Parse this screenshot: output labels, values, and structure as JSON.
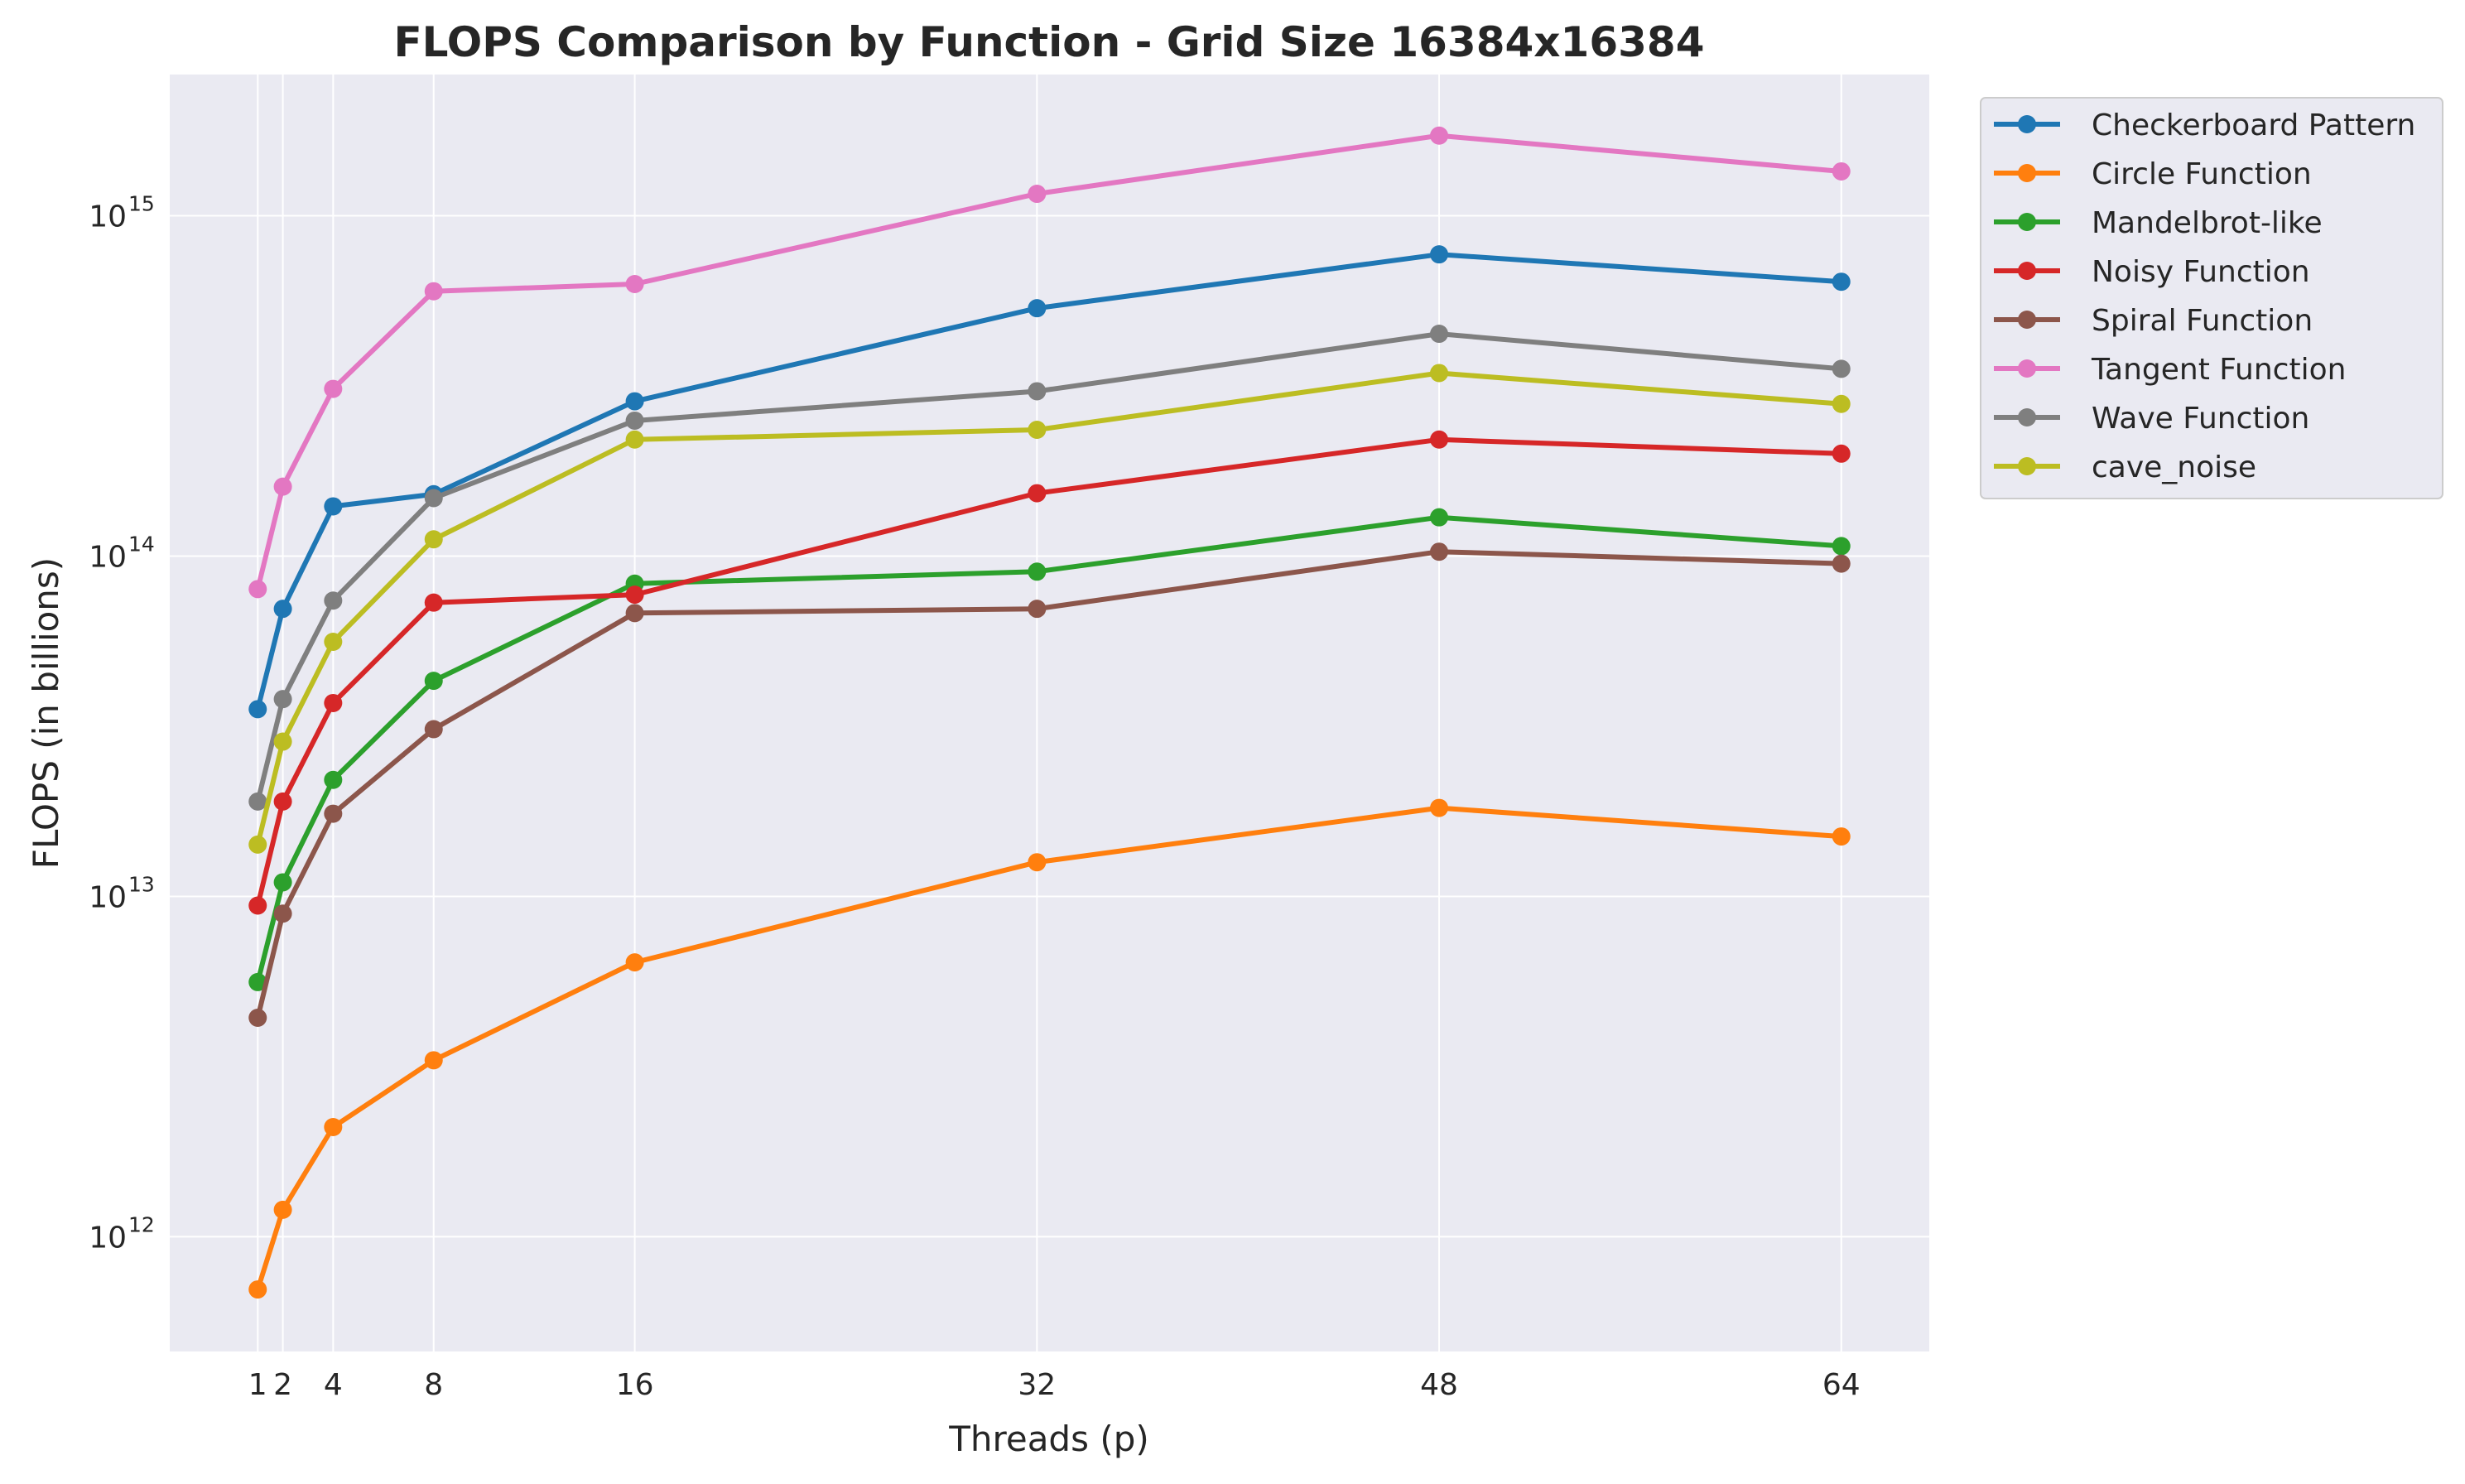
{
  "chart_data": {
    "type": "line",
    "title": "FLOPS Comparison by Function - Grid Size 16384x16384",
    "xlabel": "Threads (p)",
    "ylabel": "FLOPS (in billions)",
    "yscale": "log",
    "xlim": [
      -2.5,
      67.5
    ],
    "ylim": [
      460000000000.0,
      2600000000000000.0
    ],
    "x": [
      1,
      2,
      4,
      8,
      16,
      32,
      48,
      64
    ],
    "xticks": [
      "1",
      "2",
      "4",
      "8",
      "16",
      "32",
      "48",
      "64"
    ],
    "yticks": [
      {
        "value": 1000000000000.0,
        "base": "10",
        "exp": "12"
      },
      {
        "value": 10000000000000.0,
        "base": "10",
        "exp": "13"
      },
      {
        "value": 100000000000000.0,
        "base": "10",
        "exp": "14"
      },
      {
        "value": 1000000000000000.0,
        "base": "10",
        "exp": "15"
      }
    ],
    "grid": true,
    "legend_position": "outside-upper-right",
    "series": [
      {
        "name": "Checkerboard Pattern",
        "color": "#1f77b4",
        "values": [
          35500000000000.0,
          70000000000000.0,
          140000000000000.0,
          152000000000000.0,
          285000000000000.0,
          535000000000000.0,
          770000000000000.0,
          640000000000000.0
        ]
      },
      {
        "name": "Circle Function",
        "color": "#ff7f0e",
        "values": [
          700000000000.0,
          1200000000000.0,
          2100000000000.0,
          3300000000000.0,
          6400000000000.0,
          12600000000000.0,
          18200000000000.0,
          15000000000000.0
        ]
      },
      {
        "name": "Mandelbrot-like",
        "color": "#2ca02c",
        "values": [
          5600000000000.0,
          11000000000000.0,
          22000000000000.0,
          43000000000000.0,
          83000000000000.0,
          90000000000000.0,
          130000000000000.0,
          107000000000000.0
        ]
      },
      {
        "name": "Noisy Function",
        "color": "#d62728",
        "values": [
          9400000000000.0,
          19000000000000.0,
          37000000000000.0,
          73000000000000.0,
          77000000000000.0,
          153000000000000.0,
          220000000000000.0,
          200000000000000.0
        ]
      },
      {
        "name": "Spiral Function",
        "color": "#8c564b",
        "values": [
          4400000000000.0,
          8900000000000.0,
          17500000000000.0,
          31000000000000.0,
          68000000000000.0,
          70000000000000.0,
          103000000000000.0,
          95000000000000.0
        ]
      },
      {
        "name": "Tangent Function",
        "color": "#e377c2",
        "values": [
          80000000000000.0,
          160000000000000.0,
          310000000000000.0,
          600000000000000.0,
          630000000000000.0,
          1160000000000000.0,
          1720000000000000.0,
          1350000000000000.0
        ]
      },
      {
        "name": "Wave Function",
        "color": "#7f7f7f",
        "values": [
          19000000000000.0,
          38000000000000.0,
          74000000000000.0,
          148000000000000.0,
          250000000000000.0,
          305000000000000.0,
          450000000000000.0,
          355000000000000.0
        ]
      },
      {
        "name": "cave_noise",
        "color": "#bcbd22",
        "values": [
          14200000000000.0,
          28500000000000.0,
          56000000000000.0,
          112000000000000.0,
          220000000000000.0,
          235000000000000.0,
          345000000000000.0,
          280000000000000.0
        ]
      }
    ]
  },
  "colors": {
    "plot_background": "#eaeaf2",
    "grid": "#ffffff",
    "text": "#262626"
  }
}
